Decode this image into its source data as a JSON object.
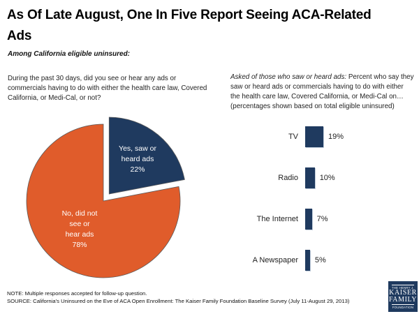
{
  "slide": {
    "title_lines": [
      "As Of Late August, One In Five Report Seeing ACA-Related",
      "Ads"
    ],
    "subtitle": "Among California eligible uninsured:",
    "note": "NOTE: Multiple responses accepted for follow-up question.",
    "source": "SOURCE: California's Uninsured on the Eve of ACA Open Enrollment: The Kaiser Family Foundation Baseline Survey (July 11-August 29, 2013)"
  },
  "pie_section": {
    "question": "During the past 30 days, did you see or hear any ads or commercials having to do with either the health care law, Covered California, or Medi-Cal, or not?"
  },
  "bar_section": {
    "question_lead_italic": "Asked of those who saw or heard ads:",
    "question_rest": "Percent who say they saw or heard ads or commercials having to do with either the health care law, Covered California, or Medi-Cal on… (percentages shown based on total eligible uninsured)"
  },
  "logo": {
    "top": "THE HENRY J.",
    "name1": "KAISER",
    "name2": "FAMILY",
    "bottom": "FOUNDATION"
  },
  "colors": {
    "navy": "#1F3A5F",
    "orange": "#E05C2B",
    "slice_outline": "#5a5a5a"
  },
  "chart_data": [
    {
      "type": "pie",
      "start_angle_deg": -90,
      "direction": "clockwise",
      "slices": [
        {
          "label": "Yes, saw or heard ads",
          "label_lines": [
            "Yes, saw or",
            "heard ads"
          ],
          "value": 22,
          "value_label": "22%",
          "color": "#1F3A5F",
          "exploded": true
        },
        {
          "label": "No, did not see or hear ads",
          "label_lines": [
            "No, did not",
            "see or",
            "hear ads"
          ],
          "value": 78,
          "value_label": "78%",
          "color": "#E05C2B",
          "exploded": false
        }
      ]
    },
    {
      "type": "bar",
      "orientation": "horizontal",
      "categories": [
        "TV",
        "Radio",
        "The Internet",
        "A Newspaper"
      ],
      "values": [
        19,
        10,
        7,
        5
      ],
      "value_labels": [
        "19%",
        "10%",
        "7%",
        "5%"
      ],
      "bar_color": "#1F3A5F",
      "xlim": [
        0,
        100
      ],
      "grid": false,
      "legend": false
    }
  ]
}
